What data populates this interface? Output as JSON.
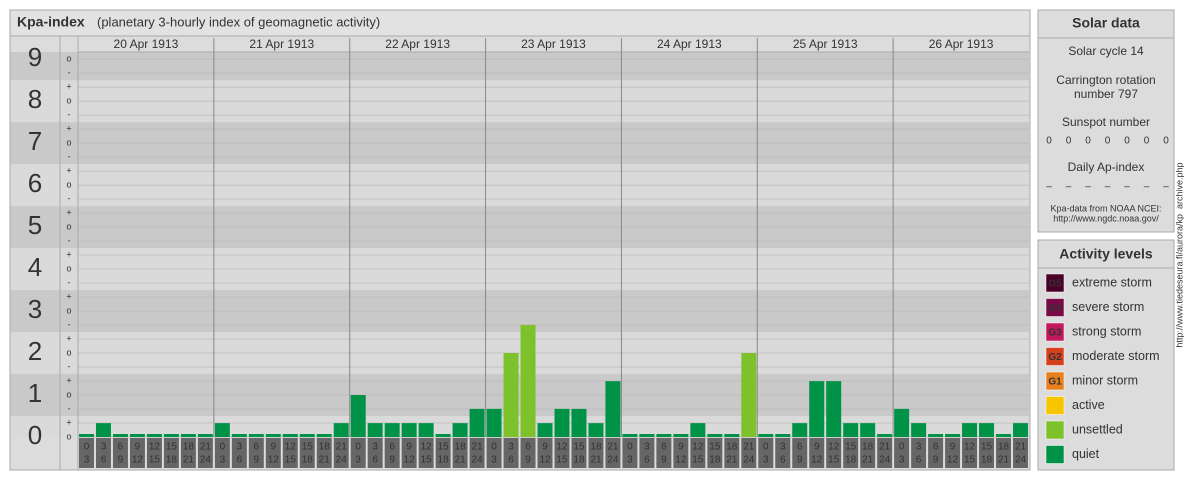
{
  "header": {
    "title": "Kpa-index",
    "subtitle": "(planetary 3-hourly index of geomagnetic activity)"
  },
  "chart_data": {
    "type": "bar",
    "ylim": [
      0,
      9.17
    ],
    "yticks": [
      0,
      1,
      2,
      3,
      4,
      5,
      6,
      7,
      8,
      9
    ],
    "sublabels": [
      "-",
      "o",
      "+"
    ],
    "hours": [
      0,
      3,
      6,
      9,
      12,
      15,
      18,
      21,
      24
    ],
    "days": [
      {
        "date": "20 Apr 1913",
        "values": [
          0,
          0.33,
          0,
          0,
          0,
          0,
          0,
          0
        ],
        "colors": [
          "#009246",
          "#009246",
          "#009246",
          "#009246",
          "#009246",
          "#009246",
          "#009246",
          "#009246"
        ]
      },
      {
        "date": "21 Apr 1913",
        "values": [
          0.33,
          0,
          0,
          0,
          0,
          0,
          0,
          0.33
        ],
        "colors": [
          "#009246",
          "#009246",
          "#009246",
          "#009246",
          "#009246",
          "#009246",
          "#009246",
          "#009246"
        ]
      },
      {
        "date": "22 Apr 1913",
        "values": [
          1,
          0.33,
          0.33,
          0.33,
          0.33,
          0,
          0.33,
          0.67
        ],
        "colors": [
          "#009246",
          "#009246",
          "#009246",
          "#009246",
          "#009246",
          "#009246",
          "#009246",
          "#009246"
        ]
      },
      {
        "date": "23 Apr 1913",
        "values": [
          0.67,
          2,
          2.67,
          0.33,
          0.67,
          0.67,
          0.33,
          1.33
        ],
        "colors": [
          "#009246",
          "#7dc12b",
          "#7dc12b",
          "#009246",
          "#009246",
          "#009246",
          "#009246",
          "#009246"
        ]
      },
      {
        "date": "24 Apr 1913",
        "values": [
          0,
          0,
          0,
          0,
          0.33,
          0,
          0,
          2
        ],
        "colors": [
          "#009246",
          "#009246",
          "#009246",
          "#009246",
          "#009246",
          "#009246",
          "#009246",
          "#7dc12b"
        ]
      },
      {
        "date": "25 Apr 1913",
        "values": [
          0,
          0,
          0.33,
          1.33,
          1.33,
          0.33,
          0.33,
          0
        ],
        "colors": [
          "#009246",
          "#009246",
          "#009246",
          "#009246",
          "#009246",
          "#009246",
          "#009246",
          "#009246"
        ]
      },
      {
        "date": "26 Apr 1913",
        "values": [
          0.67,
          0.33,
          0,
          0,
          0.33,
          0.33,
          0,
          0.33
        ],
        "colors": [
          "#009246",
          "#009246",
          "#009246",
          "#009246",
          "#009246",
          "#009246",
          "#009246",
          "#009246"
        ]
      }
    ]
  },
  "solar": {
    "title": "Solar data",
    "cycle": "Solar cycle 14",
    "carrington": [
      "Carrington rotation",
      "number 797"
    ],
    "sunspot_label": "Sunspot number",
    "sunspots": [
      0,
      0,
      0,
      0,
      0,
      0,
      0
    ],
    "ap_label": "Daily Ap-index",
    "ap": [
      "–",
      "–",
      "–",
      "–",
      "–",
      "–",
      "–"
    ],
    "source": [
      "Kpa-data from NOAA NCEI:",
      "http://www.ngdc.noaa.gov/"
    ]
  },
  "levels": {
    "title": "Activity levels",
    "items": [
      {
        "badge": "G5",
        "label": "extreme storm",
        "color": "#4a0028"
      },
      {
        "badge": "G4",
        "label": "severe storm",
        "color": "#7a0a45"
      },
      {
        "badge": "G3",
        "label": "strong storm",
        "color": "#c2185b"
      },
      {
        "badge": "G2",
        "label": "moderate storm",
        "color": "#d6401e"
      },
      {
        "badge": "G1",
        "label": "minor storm",
        "color": "#e8801e"
      },
      {
        "badge": null,
        "label": "active",
        "color": "#f7c600"
      },
      {
        "badge": null,
        "label": "unsettled",
        "color": "#7dc12b"
      },
      {
        "badge": null,
        "label": "quiet",
        "color": "#009246"
      }
    ]
  },
  "watermark": "http://www.tiedeseura.fi/aurora/kp_archive.php"
}
